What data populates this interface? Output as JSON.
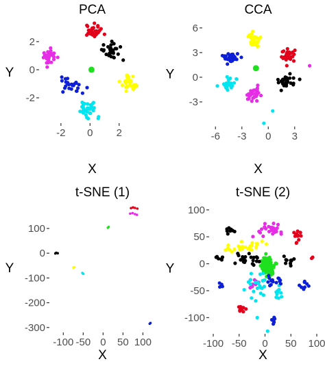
{
  "figure": {
    "background": "#ffffff"
  },
  "cluster_colors": {
    "red": "#e3001b",
    "black": "#000000",
    "magenta": "#e62de6",
    "yellow": "#ffff00",
    "blue": "#0d1fd6",
    "cyan": "#00e5f0",
    "green": "#1ee01e"
  },
  "chart_data": [
    {
      "type": "scatter",
      "title": "PCA",
      "xlabel": "X",
      "ylabel": "Y",
      "xlim": [
        -3.5,
        3.8
      ],
      "ylim": [
        -3.8,
        3.5
      ],
      "xticks": [
        -2,
        0,
        2
      ],
      "yticks": [
        -2,
        0,
        2
      ],
      "grid": false,
      "series": [
        {
          "color": "red",
          "center": [
            0.3,
            2.7
          ],
          "spread": [
            0.45,
            0.32
          ],
          "n": 32
        },
        {
          "color": "black",
          "center": [
            1.5,
            1.3
          ],
          "spread": [
            0.45,
            0.38
          ],
          "n": 30
        },
        {
          "color": "magenta",
          "center": [
            -2.8,
            1.0
          ],
          "spread": [
            0.3,
            0.45
          ],
          "n": 30
        },
        {
          "color": "yellow",
          "center": [
            2.8,
            -0.9
          ],
          "spread": [
            0.42,
            0.42
          ],
          "n": 32
        },
        {
          "color": "blue",
          "center": [
            -1.3,
            -1.1
          ],
          "spread": [
            0.55,
            0.42
          ],
          "n": 26
        },
        {
          "color": "cyan",
          "center": [
            -0.1,
            -2.8
          ],
          "spread": [
            0.4,
            0.5
          ],
          "n": 32
        },
        {
          "color": "green",
          "points": [
            [
              0.1,
              0.0
            ]
          ]
        }
      ]
    },
    {
      "type": "scatter",
      "title": "CCA",
      "xlabel": "X",
      "ylabel": "Y",
      "xlim": [
        -7.5,
        5.2
      ],
      "ylim": [
        -6.0,
        6.9
      ],
      "xticks": [
        -6,
        -3,
        0,
        3
      ],
      "yticks": [
        -3,
        0,
        3,
        6
      ],
      "grid": false,
      "series": [
        {
          "color": "yellow",
          "center": [
            -1.6,
            4.6
          ],
          "spread": [
            0.55,
            0.8
          ],
          "n": 34
        },
        {
          "color": "blue",
          "center": [
            -4.3,
            2.5
          ],
          "spread": [
            0.6,
            0.45
          ],
          "n": 28
        },
        {
          "color": "red",
          "center": [
            2.2,
            2.7
          ],
          "spread": [
            0.55,
            0.6
          ],
          "n": 30
        },
        {
          "color": "green",
          "points": [
            [
              -1.4,
              1.1
            ]
          ]
        },
        {
          "color": "cyan",
          "center": [
            -4.5,
            -1.0
          ],
          "spread": [
            0.6,
            0.55
          ],
          "n": 30
        },
        {
          "color": "black",
          "center": [
            2.0,
            -0.6
          ],
          "spread": [
            0.65,
            0.5
          ],
          "n": 32
        },
        {
          "color": "magenta",
          "center": [
            -1.6,
            -2.1
          ],
          "spread": [
            0.5,
            0.6
          ],
          "n": 30
        },
        {
          "color": "cyan",
          "points": [
            [
              0.5,
              -4.1
            ],
            [
              -0.5,
              -5.6
            ]
          ]
        },
        {
          "color": "magenta",
          "points": [
            [
              4.7,
              1.4
            ]
          ]
        }
      ]
    },
    {
      "type": "scatter",
      "title": "t-SNE (1)",
      "xlabel": "X",
      "ylabel": "Y",
      "xlim": [
        -135,
        132
      ],
      "ylim": [
        -320,
        205
      ],
      "xticks": [
        -100,
        -50,
        0,
        50,
        100
      ],
      "yticks": [
        -300,
        -200,
        -100,
        0,
        100
      ],
      "grid": false,
      "series": [
        {
          "color": "red",
          "points": [
            [
              75,
              185
            ],
            [
              70,
              182
            ],
            [
              80,
              183
            ],
            [
              86,
              180
            ]
          ]
        },
        {
          "color": "magenta",
          "points": [
            [
              68,
              160
            ],
            [
              74,
              162
            ],
            [
              80,
              158
            ],
            [
              85,
              155
            ]
          ]
        },
        {
          "color": "green",
          "points": [
            [
              12,
              103
            ],
            [
              14,
              106
            ]
          ]
        },
        {
          "color": "black",
          "points": [
            [
              -118,
              2
            ],
            [
              -114,
              0
            ],
            [
              -120,
              -1
            ]
          ]
        },
        {
          "color": "yellow",
          "points": [
            [
              -75,
              -58
            ],
            [
              -72,
              -56
            ]
          ]
        },
        {
          "color": "cyan",
          "points": [
            [
              -52,
              -80
            ],
            [
              -50,
              -83
            ]
          ]
        },
        {
          "color": "blue",
          "points": [
            [
              117,
              -285
            ],
            [
              119,
              -282
            ]
          ]
        }
      ]
    },
    {
      "type": "scatter",
      "title": "t-SNE (2)",
      "xlabel": "X",
      "ylabel": "Y",
      "xlim": [
        -108,
        100
      ],
      "ylim": [
        -130,
        115
      ],
      "xticks": [
        -100,
        -50,
        0,
        50,
        100
      ],
      "yticks": [
        -100,
        -50,
        0,
        50,
        100
      ],
      "grid": false,
      "series": [
        {
          "color": "green",
          "center": [
            5,
            -5
          ],
          "spread": [
            10,
            12
          ],
          "n": 110
        },
        {
          "color": "magenta",
          "center": [
            7,
            65
          ],
          "spread": [
            18,
            10
          ],
          "n": 28
        },
        {
          "color": "magenta",
          "center": [
            -25,
            -35
          ],
          "spread": [
            8,
            8
          ],
          "n": 8
        },
        {
          "color": "red",
          "center": [
            60,
            50
          ],
          "spread": [
            8,
            8
          ],
          "n": 14
        },
        {
          "color": "red",
          "center": [
            -46,
            -83
          ],
          "spread": [
            5,
            5
          ],
          "n": 8
        },
        {
          "color": "red",
          "points": [
            [
              90,
              10
            ],
            [
              92,
              12
            ]
          ]
        },
        {
          "color": "black",
          "center": [
            -65,
            60
          ],
          "spread": [
            6,
            6
          ],
          "n": 8
        },
        {
          "color": "black",
          "center": [
            -33,
            8
          ],
          "spread": [
            18,
            12
          ],
          "n": 22
        },
        {
          "color": "black",
          "center": [
            -85,
            10
          ],
          "spread": [
            8,
            8
          ],
          "n": 6
        },
        {
          "color": "black",
          "center": [
            48,
            5
          ],
          "spread": [
            10,
            8
          ],
          "n": 10
        },
        {
          "color": "yellow",
          "center": [
            -30,
            35
          ],
          "spread": [
            22,
            8
          ],
          "n": 20
        },
        {
          "color": "yellow",
          "center": [
            -68,
            28
          ],
          "spread": [
            8,
            6
          ],
          "n": 6
        },
        {
          "color": "cyan",
          "center": [
            -25,
            -45
          ],
          "spread": [
            20,
            15
          ],
          "n": 22
        },
        {
          "color": "cyan",
          "center": [
            25,
            -55
          ],
          "spread": [
            8,
            10
          ],
          "n": 10
        },
        {
          "color": "blue",
          "center": [
            20,
            -35
          ],
          "spread": [
            15,
            12
          ],
          "n": 14
        },
        {
          "color": "blue",
          "center": [
            75,
            -40
          ],
          "spread": [
            8,
            8
          ],
          "n": 8
        },
        {
          "color": "blue",
          "center": [
            -85,
            -35
          ],
          "spread": [
            5,
            5
          ],
          "n": 4
        },
        {
          "color": "blue",
          "center": [
            18,
            -105
          ],
          "spread": [
            4,
            7
          ],
          "n": 6
        },
        {
          "color": "cyan",
          "points": [
            [
              5,
              -125
            ],
            [
              -15,
              -100
            ]
          ]
        }
      ]
    }
  ]
}
